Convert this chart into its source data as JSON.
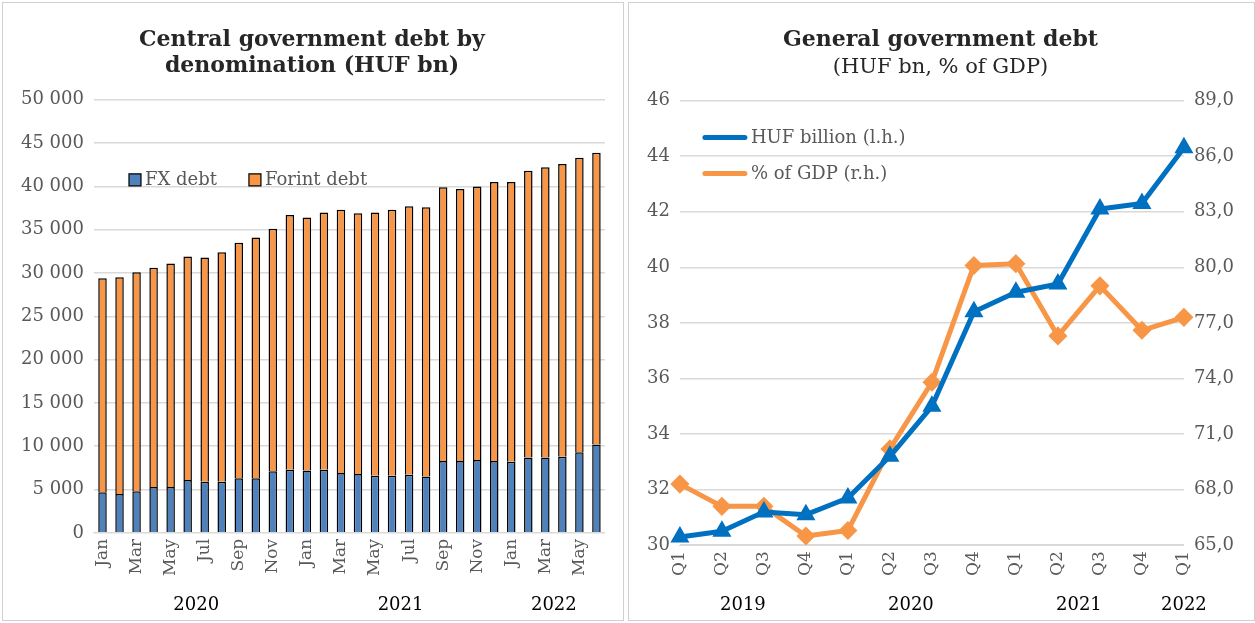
{
  "chart_data": [
    {
      "type": "bar",
      "title": "Central government debt by denomination (HUF bn)",
      "stacked": true,
      "grid": "y",
      "legend": "top left",
      "categories": [
        "Jan",
        null,
        "Mar",
        null,
        "May",
        null,
        "Jul",
        null,
        "Sep",
        null,
        "Nov",
        null,
        "Jan",
        null,
        "Mar",
        null,
        "May",
        null,
        "Jul",
        null,
        "Sep",
        null,
        "Nov",
        null,
        "Jan",
        null,
        "Mar",
        null,
        "May",
        null
      ],
      "series": [
        {
          "name": "FX debt",
          "color": "#4f81bd",
          "values": [
            4700,
            4500,
            4800,
            5300,
            5300,
            6100,
            5900,
            5900,
            6300,
            6300,
            7100,
            7300,
            7200,
            7300,
            6900,
            6800,
            6600,
            6600,
            6700,
            6500,
            8300,
            8300,
            8400,
            8300,
            8200,
            8700,
            8700,
            8800,
            9300,
            10200
          ]
        },
        {
          "name": "Forint debt",
          "color": "#f79646",
          "values": [
            24700,
            25000,
            25300,
            25300,
            25800,
            25800,
            25900,
            26500,
            27200,
            27800,
            28000,
            29400,
            29200,
            29700,
            30400,
            30100,
            30400,
            30700,
            31000,
            31100,
            31600,
            31400,
            31600,
            32200,
            32300,
            33100,
            33500,
            33800,
            34000,
            33700
          ]
        }
      ],
      "ylim": [
        0,
        50000
      ],
      "yticks": [
        {
          "value": 0,
          "label": "0"
        },
        {
          "value": 5000,
          "label": "5 000"
        },
        {
          "value": 10000,
          "label": "10 000"
        },
        {
          "value": 15000,
          "label": "15 000"
        },
        {
          "value": 20000,
          "label": "20 000"
        },
        {
          "value": 25000,
          "label": "25 000"
        },
        {
          "value": 30000,
          "label": "30 000"
        },
        {
          "value": 35000,
          "label": "35 000"
        },
        {
          "value": 40000,
          "label": "40 000"
        },
        {
          "value": 45000,
          "label": "45 000"
        },
        {
          "value": 50000,
          "label": "50 000"
        }
      ],
      "annotations": [
        "2020",
        "2021",
        "2022"
      ]
    },
    {
      "type": "line",
      "title": "General government debt",
      "subtitle": "(HUF bn, % of GDP)",
      "grid": "y",
      "legend": "top left",
      "categories": [
        "Q1",
        "Q2",
        "Q3",
        "Q4",
        "Q1",
        "Q2",
        "Q3",
        "Q4",
        "Q1",
        "Q2",
        "Q3",
        "Q4",
        "Q1"
      ],
      "series": [
        {
          "name": "HUF billion (l.h.)",
          "color": "#0070c0",
          "marker": "triangle",
          "values": [
            30.3,
            30.5,
            31.2,
            31.1,
            31.7,
            33.2,
            35.0,
            38.4,
            39.1,
            39.4,
            42.1,
            42.3,
            44.3
          ]
        },
        {
          "name": "% of GDP (r.h.)",
          "color": "#f79646",
          "marker": "diamond",
          "axis": "y2",
          "values": [
            68.3,
            67.1,
            67.1,
            65.5,
            65.8,
            70.2,
            73.8,
            80.1,
            80.2,
            76.3,
            79.0,
            76.6,
            77.3
          ]
        }
      ],
      "ylim": [
        30,
        46
      ],
      "yticks": [
        30,
        32,
        34,
        36,
        38,
        40,
        42,
        44,
        46
      ],
      "y2lim": [
        65,
        89
      ],
      "y2ticks": [
        {
          "value": 65,
          "label": "65,0"
        },
        {
          "value": 68,
          "label": "68,0"
        },
        {
          "value": 71,
          "label": "71,0"
        },
        {
          "value": 74,
          "label": "74,0"
        },
        {
          "value": 77,
          "label": "77,0"
        },
        {
          "value": 80,
          "label": "80,0"
        },
        {
          "value": 83,
          "label": "83,0"
        },
        {
          "value": 86,
          "label": "86,0"
        },
        {
          "value": 89,
          "label": "89,0"
        }
      ],
      "annotations": [
        "2019",
        "2020",
        "2021",
        "2022"
      ]
    }
  ]
}
